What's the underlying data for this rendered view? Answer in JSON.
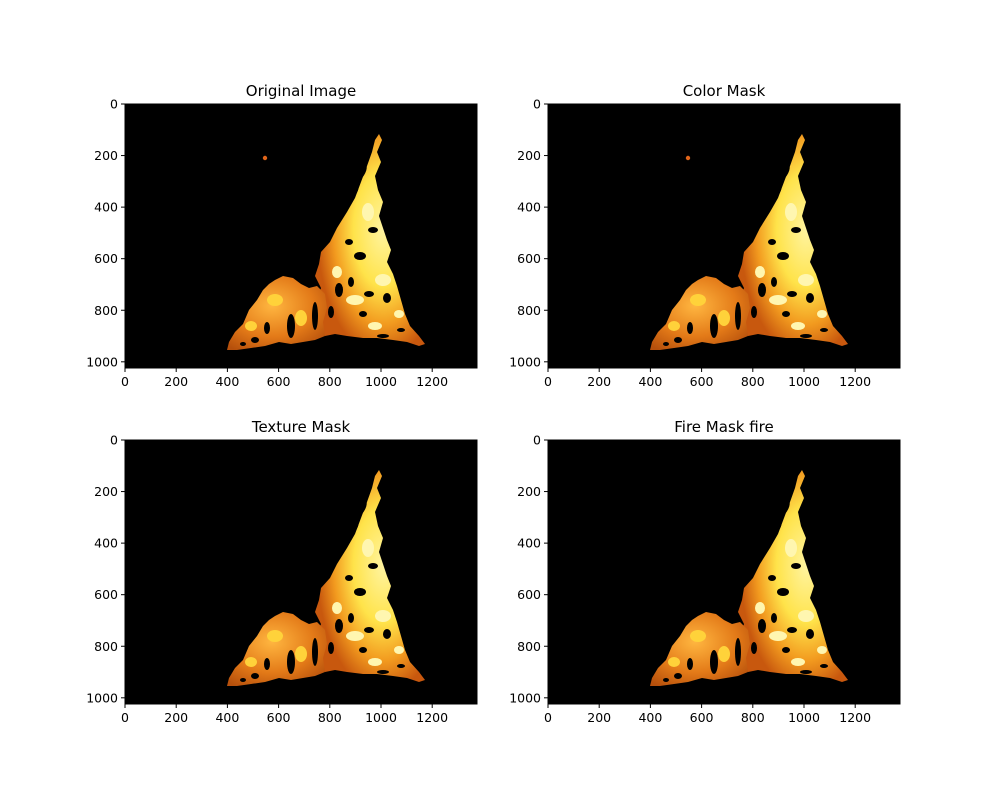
{
  "figure": {
    "panels": [
      {
        "title": "Original Image",
        "kind": "original",
        "spark": true
      },
      {
        "title": "Color Mask",
        "kind": "color",
        "spark": true
      },
      {
        "title": "Texture Mask",
        "kind": "texture",
        "spark": false
      },
      {
        "title": "Fire Mask fire",
        "kind": "fire",
        "spark": false
      }
    ],
    "x_ticks": [
      "0",
      "200",
      "400",
      "600",
      "800",
      "1000",
      "1200"
    ],
    "y_ticks": [
      "0",
      "200",
      "400",
      "600",
      "800",
      "1000"
    ],
    "x_tick_values": [
      0,
      200,
      400,
      600,
      800,
      1000,
      1200
    ],
    "y_tick_values": [
      0,
      200,
      400,
      600,
      800,
      1000
    ],
    "image_width": 1375,
    "image_height": 1024
  },
  "colors": {
    "background": "#000000",
    "flame_yellow": "#ffe34a",
    "flame_orange": "#f29a1f",
    "flame_deep": "#c8580e",
    "flame_light": "#fff4a0"
  }
}
